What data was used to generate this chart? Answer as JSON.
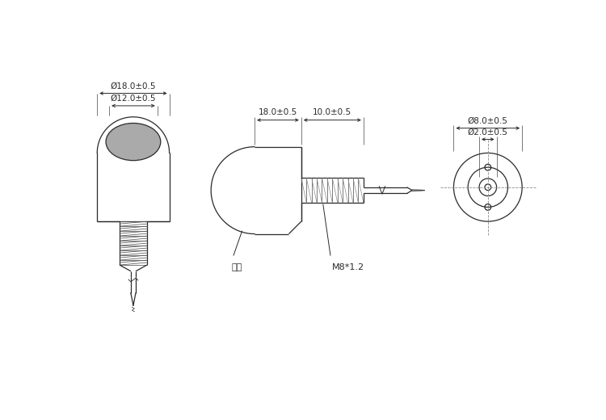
{
  "bg_color": "#ffffff",
  "line_color": "#2a2a2a",
  "dim_color": "#2a2a2a",
  "gray_fill": "#aaaaaa",
  "label_shell": "塑壳",
  "label_M8": "M8*1.2",
  "dim_18": "18.0±0.5",
  "dim_10": "10.0±0.5",
  "dim_D18": "Ø18.0±0.5",
  "dim_D12": "Ø12.0±0.5",
  "dim_D8": "Ø8.0±0.5",
  "dim_D2": "Ø2.0±0.5"
}
